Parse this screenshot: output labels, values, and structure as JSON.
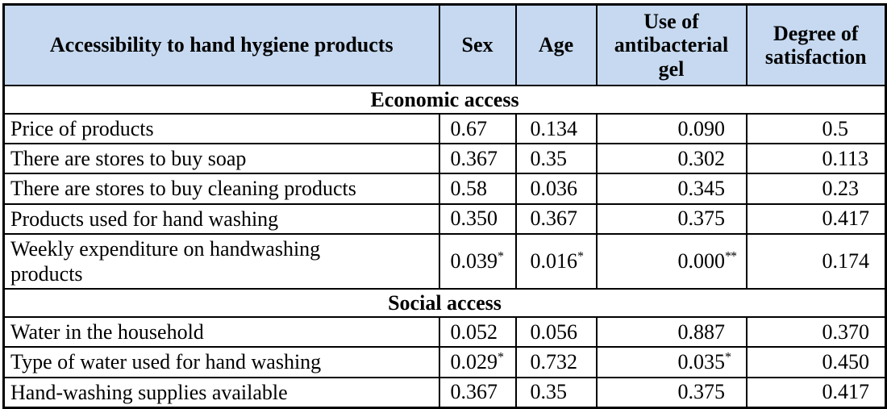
{
  "colors": {
    "header_bg": "#c6d9f0",
    "border": "#000000",
    "text": "#000000"
  },
  "table": {
    "columns": [
      "Accessibility to hand hygiene products",
      "Sex",
      "Age",
      "Use of antibacterial gel",
      "Degree of satisfaction"
    ],
    "sections": [
      {
        "title": "Economic access",
        "rows": [
          {
            "label": "Price of products",
            "values": [
              "0.67",
              "0.134",
              "0.090",
              "0.5"
            ]
          },
          {
            "label": "There are stores to buy soap",
            "values": [
              "0.367",
              "0.35",
              "0.302",
              "0.113"
            ]
          },
          {
            "label": "There are stores to buy cleaning products",
            "values": [
              "0.58",
              "0.036",
              "0.345",
              "0.23"
            ]
          },
          {
            "label": "Products used for hand washing",
            "values": [
              "0.350",
              "0.367",
              "0.375",
              "0.417"
            ]
          },
          {
            "label": "Weekly expenditure on handwashing\nproducts",
            "values": [
              "0.039*",
              "0.016*",
              "0.000**",
              "0.174"
            ]
          }
        ]
      },
      {
        "title": "Social access",
        "rows": [
          {
            "label": "Water in the household",
            "values": [
              "0.052",
              "0.056",
              "0.887",
              "0.370"
            ]
          },
          {
            "label": "Type of water used for hand washing",
            "values": [
              "0.029*",
              "0.732",
              "0.035*",
              "0.450"
            ]
          },
          {
            "label": "Hand-washing supplies available",
            "values": [
              "0.367",
              "0.35",
              "0.375",
              "0.417"
            ]
          }
        ]
      }
    ]
  }
}
